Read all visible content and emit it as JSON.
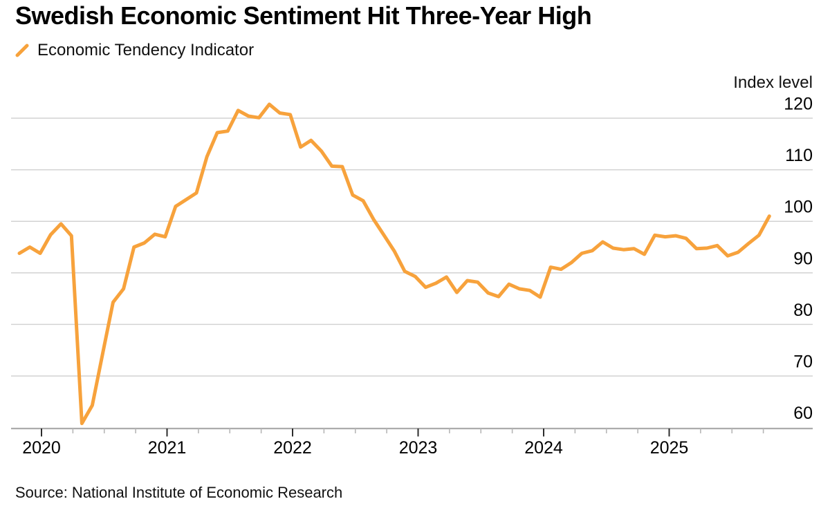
{
  "header": {
    "title": "Swedish Economic Sentiment Hit Three-Year High"
  },
  "legend": {
    "label": "Economic Tendency Indicator"
  },
  "source": "Source: National Institute of Economic Research",
  "colors": {
    "line": "#F7A23C",
    "grid": "#D2D2D2",
    "axis": "#ACACAC",
    "tick_major": "#2B2B2B",
    "tick_minor": "#B6B6B6",
    "text": "#000000"
  },
  "chart_data": {
    "type": "line",
    "title": "Swedish Economic Sentiment Hit Three-Year High",
    "series_name": "Economic Tendency Indicator",
    "xlabel": "",
    "ylabel": "Index level",
    "ylim": [
      60,
      120
    ],
    "grid": true,
    "legend_position": "top-left",
    "y_ticks": [
      60,
      70,
      80,
      90,
      100,
      110,
      120
    ],
    "x_ticks": [
      2020,
      2021,
      2022,
      2023,
      2024,
      2025
    ],
    "x_minor_ticks_per_year": 4,
    "x": [
      "2019-10",
      "2019-11",
      "2019-12",
      "2020-01",
      "2020-02",
      "2020-03",
      "2020-04",
      "2020-05",
      "2020-06",
      "2020-07",
      "2020-08",
      "2020-09",
      "2020-10",
      "2020-11",
      "2020-12",
      "2021-01",
      "2021-02",
      "2021-03",
      "2021-04",
      "2021-05",
      "2021-06",
      "2021-07",
      "2021-08",
      "2021-09",
      "2021-10",
      "2021-11",
      "2021-12",
      "2022-01",
      "2022-02",
      "2022-03",
      "2022-04",
      "2022-05",
      "2022-06",
      "2022-07",
      "2022-08",
      "2022-09",
      "2022-10",
      "2022-11",
      "2022-12",
      "2023-01",
      "2023-02",
      "2023-03",
      "2023-04",
      "2023-05",
      "2023-06",
      "2023-07",
      "2023-08",
      "2023-09",
      "2023-10",
      "2023-11",
      "2023-12",
      "2024-01",
      "2024-02",
      "2024-03",
      "2024-04",
      "2024-05",
      "2024-06",
      "2024-07",
      "2024-08",
      "2024-09",
      "2024-10",
      "2024-11",
      "2024-12",
      "2025-01",
      "2025-02",
      "2025-03",
      "2025-04",
      "2025-05",
      "2025-06",
      "2025-07",
      "2025-08",
      "2025-09",
      "2025-10"
    ],
    "values": [
      93.8,
      95.0,
      93.8,
      97.4,
      99.5,
      97.2,
      60.8,
      64.3,
      74.4,
      84.3,
      86.9,
      95.0,
      95.8,
      97.5,
      97.0,
      102.9,
      104.2,
      105.5,
      112.5,
      117.2,
      117.5,
      121.5,
      120.4,
      120.1,
      122.7,
      121.0,
      120.7,
      114.4,
      115.7,
      113.6,
      110.7,
      110.6,
      105.1,
      104.0,
      100.4,
      97.3,
      94.2,
      90.3,
      89.3,
      87.2,
      88.0,
      89.2,
      86.2,
      88.5,
      88.2,
      86.1,
      85.4,
      87.8,
      86.9,
      86.6,
      85.3,
      91.1,
      90.7,
      92.0,
      93.8,
      94.3,
      96.0,
      94.8,
      94.5,
      94.7,
      93.6,
      97.3,
      97.0,
      97.2,
      96.7,
      94.7,
      94.8,
      95.3,
      93.3,
      94.0,
      95.7,
      97.3,
      101.0
    ]
  }
}
